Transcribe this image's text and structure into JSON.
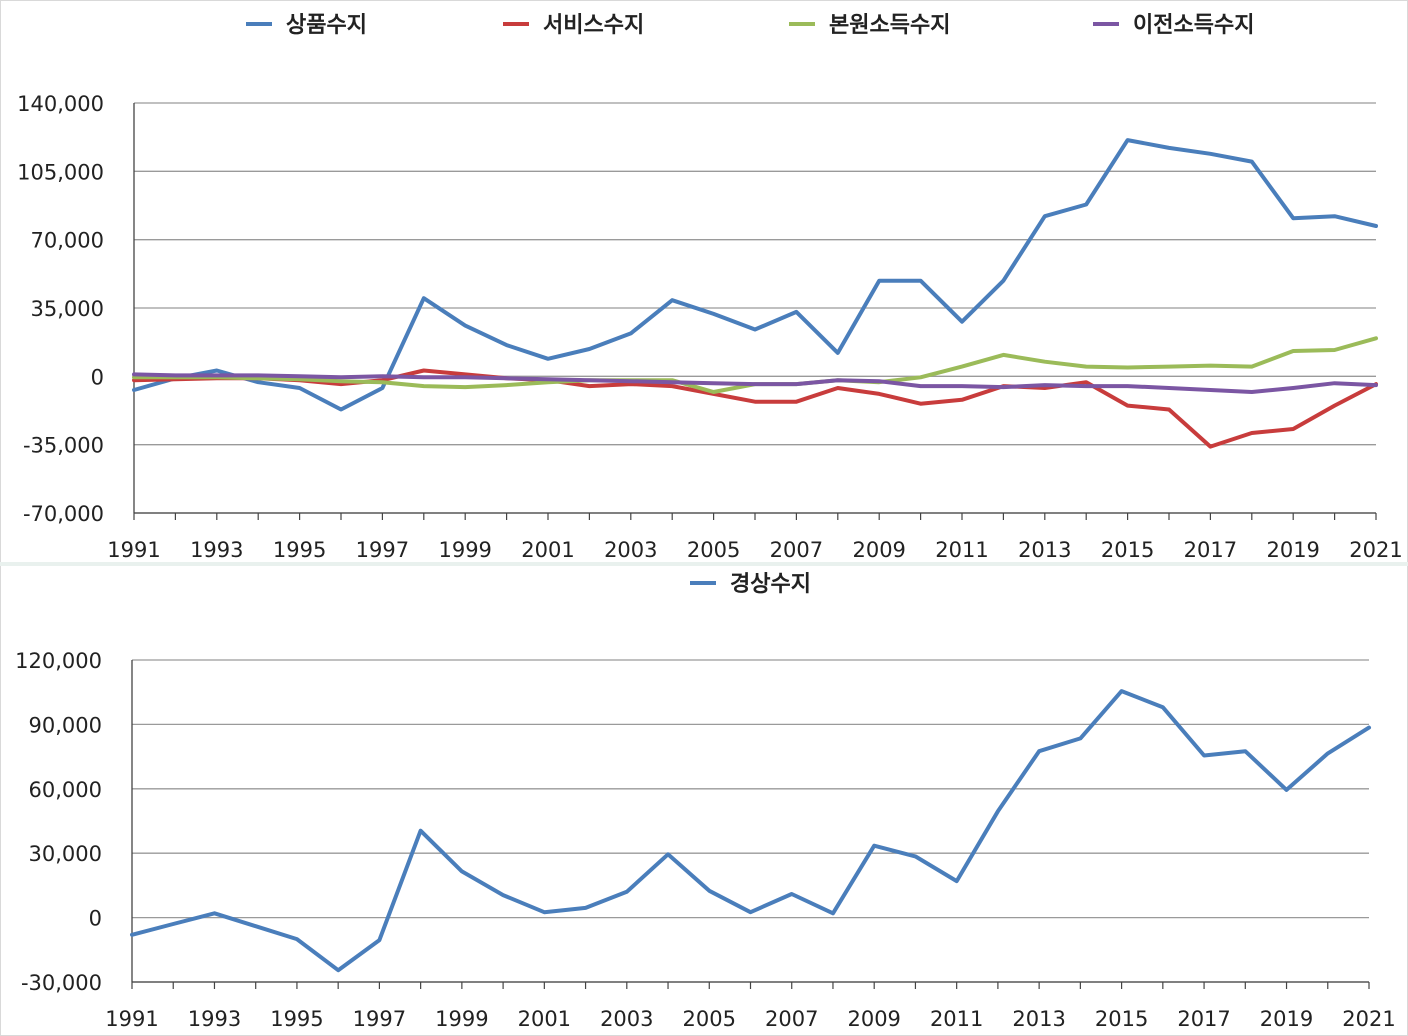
{
  "chart_data": [
    {
      "type": "line",
      "x": [
        1991,
        1992,
        1993,
        1994,
        1995,
        1996,
        1997,
        1998,
        1999,
        2000,
        2001,
        2002,
        2003,
        2004,
        2005,
        2006,
        2007,
        2008,
        2009,
        2010,
        2011,
        2012,
        2013,
        2014,
        2015,
        2016,
        2017,
        2018,
        2019,
        2020,
        2021
      ],
      "xticks": [
        "1991",
        "1993",
        "1995",
        "1997",
        "1999",
        "2001",
        "2003",
        "2005",
        "2007",
        "2009",
        "2011",
        "2013",
        "2015",
        "2017",
        "2019",
        "2021"
      ],
      "yticks": [
        "140,000",
        "105,000",
        "70,000",
        "35,000",
        "0",
        "-35,000",
        "-70,000"
      ],
      "ylim": [
        -70000,
        140000
      ],
      "grid": true,
      "legend_position": "top",
      "series": [
        {
          "name": "상품수지",
          "color": "#4a7ebb",
          "values": [
            -7000,
            -1000,
            3000,
            -3000,
            -6000,
            -17000,
            -6000,
            40000,
            26000,
            16000,
            9000,
            14000,
            22000,
            39000,
            32000,
            24000,
            33000,
            12000,
            49000,
            49000,
            28000,
            49000,
            82000,
            88000,
            121000,
            117000,
            114000,
            110000,
            81000,
            82000,
            77000
          ]
        },
        {
          "name": "서비스수지",
          "color": "#c83c3c",
          "values": [
            -2000,
            -1500,
            -1000,
            -1000,
            -2000,
            -4000,
            -2000,
            3000,
            1000,
            -1000,
            -2000,
            -5000,
            -4000,
            -5000,
            -9000,
            -13000,
            -13000,
            -6000,
            -9000,
            -14000,
            -12000,
            -5000,
            -6000,
            -3000,
            -15000,
            -17000,
            -36000,
            -29000,
            -27000,
            -15000,
            -4000
          ]
        },
        {
          "name": "본원소득수지",
          "color": "#9bbb59",
          "values": [
            -500,
            -500,
            -500,
            -1000,
            -1500,
            -2500,
            -3000,
            -5000,
            -5500,
            -4500,
            -3000,
            -2000,
            -2000,
            -2000,
            -8000,
            -4000,
            -4000,
            -2000,
            -3000,
            -500,
            5000,
            11000,
            7500,
            5000,
            4500,
            5000,
            5500,
            5000,
            13000,
            13500,
            19500
          ]
        },
        {
          "name": "이전소득수지",
          "color": "#7b56a3",
          "values": [
            1000,
            500,
            500,
            500,
            0,
            -500,
            0,
            -500,
            -500,
            -1000,
            -1500,
            -2000,
            -2500,
            -3000,
            -3500,
            -4000,
            -4000,
            -2000,
            -2500,
            -5000,
            -5000,
            -5500,
            -4500,
            -5000,
            -5000,
            -6000,
            -7000,
            -8000,
            -6000,
            -3500,
            -4500
          ]
        }
      ]
    },
    {
      "type": "line",
      "x": [
        1991,
        1992,
        1993,
        1994,
        1995,
        1996,
        1997,
        1998,
        1999,
        2000,
        2001,
        2002,
        2003,
        2004,
        2005,
        2006,
        2007,
        2008,
        2009,
        2010,
        2011,
        2012,
        2013,
        2014,
        2015,
        2016,
        2017,
        2018,
        2019,
        2020,
        2021
      ],
      "xticks": [
        "1991",
        "1993",
        "1995",
        "1997",
        "1999",
        "2001",
        "2003",
        "2005",
        "2007",
        "2009",
        "2011",
        "2013",
        "2015",
        "2017",
        "2019",
        "2021"
      ],
      "yticks": [
        "120,000",
        "90,000",
        "60,000",
        "30,000",
        "0",
        "-30,000"
      ],
      "ylim": [
        -30000,
        120000
      ],
      "grid": true,
      "legend_position": "top",
      "series": [
        {
          "name": "경상수지",
          "color": "#4a7ebb",
          "values": [
            -8000,
            -3000,
            2000,
            -4000,
            -10000,
            -24500,
            -10500,
            40500,
            21500,
            10500,
            2500,
            4500,
            12000,
            29500,
            12500,
            2500,
            11000,
            2000,
            33500,
            28500,
            17000,
            49500,
            77500,
            83500,
            105500,
            98000,
            75500,
            77500,
            59500,
            76500,
            88500
          ]
        }
      ]
    }
  ]
}
